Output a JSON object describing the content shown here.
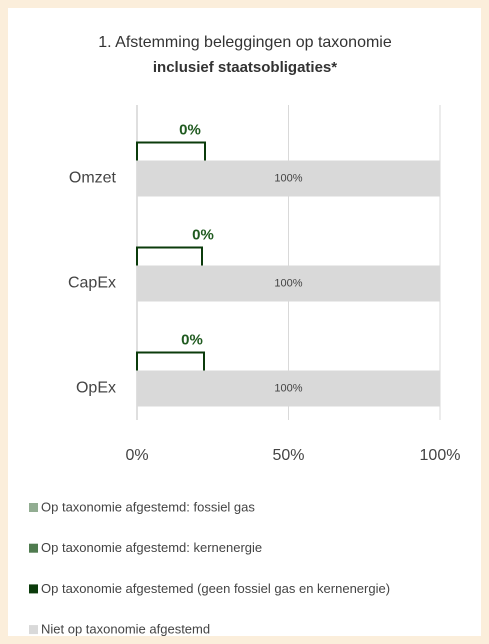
{
  "chart_data": {
    "type": "stacked_bar_horizontal",
    "title": "1. Afstemming beleggingen op taxonomie",
    "subtitle": "inclusief staatsobligaties*",
    "categories": [
      "Omzet",
      "CapEx",
      "OpEx"
    ],
    "series": [
      {
        "name": "Op taxonomie afgestemd: fossiel gas",
        "color": "#92ad92",
        "values": [
          0,
          0,
          0
        ],
        "value_labels": [
          "0%",
          "0%",
          "0%"
        ]
      },
      {
        "name": "Op taxonomie afgestemd: kernenergie",
        "color": "#4f7b4f",
        "values": [
          0,
          0,
          0
        ],
        "value_labels": [
          "0%",
          "0%",
          "0%"
        ]
      },
      {
        "name": "Op taxonomie afgestemed (geen fossiel gas en kernenergie)",
        "color": "#0b3b0b",
        "values": [
          0,
          0,
          0
        ],
        "value_labels": [
          "0%",
          "0%",
          "0%"
        ]
      },
      {
        "name": "Niet op taxonomie afgestemd",
        "color": "#d9d9d9",
        "values": [
          100,
          100,
          100
        ],
        "value_labels": [
          "100%",
          "100%",
          "100%"
        ]
      }
    ],
    "annotations": [
      "0%",
      "0%",
      "0%"
    ],
    "xlim": [
      0,
      100
    ],
    "xticks": [
      {
        "value": 0,
        "label": "0%"
      },
      {
        "value": 50,
        "label": "50%"
      },
      {
        "value": 100,
        "label": "100%"
      }
    ],
    "grid": true,
    "legend": "bottom"
  }
}
